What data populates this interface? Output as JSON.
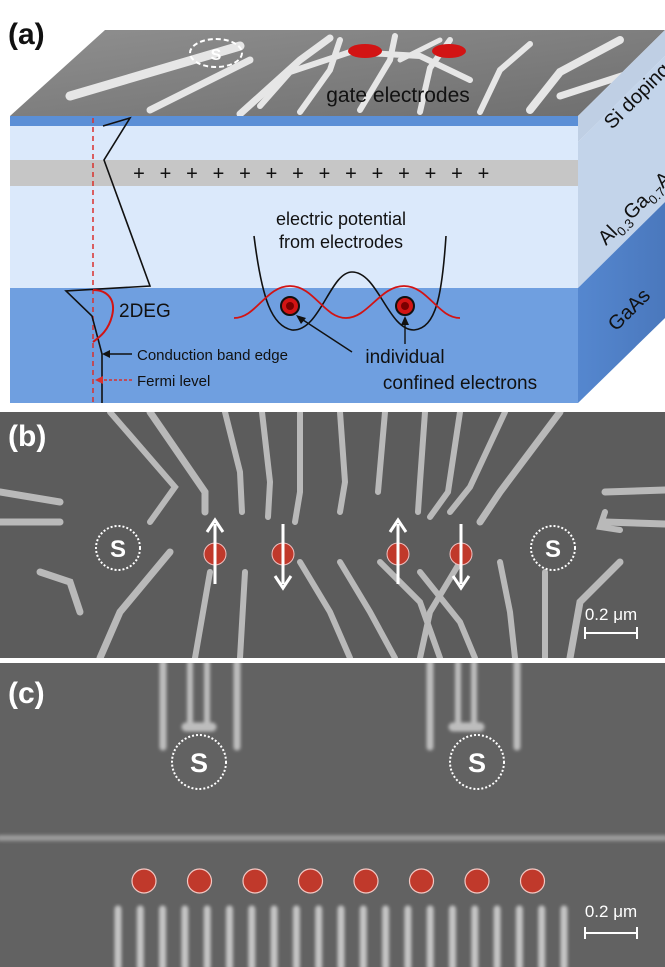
{
  "panel_a": {
    "label": "(a)",
    "gate_label": "gate electrodes",
    "layer_si": "Si doping",
    "layer_algaas": {
      "al": "Al",
      "s1": "0.3",
      "ga": "Ga",
      "s2": "0.7",
      "as": "As"
    },
    "layer_gaas": "GaAs",
    "plus_sign": "+",
    "potential_label_1": "electric potential",
    "potential_label_2": "from electrodes",
    "twodeg_label": "2DEG",
    "conduction_label": "Conduction band edge",
    "fermi_label": "Fermi level",
    "electrons_label_1": "individual",
    "electrons_label_2": "confined electrons",
    "sensor_symbol": "S",
    "colors": {
      "electron": "#d21414",
      "potential": "#111111",
      "fermi": "#d9302c",
      "gaas": "#6f9fe0",
      "algaas": "#dbe9fb",
      "spacer": "#c6c6c6"
    }
  },
  "panel_b": {
    "label": "(b)",
    "sensor_symbol": "S",
    "scale_label": "0.2 μm",
    "spins": [
      "up",
      "down",
      "up",
      "down"
    ]
  },
  "panel_c": {
    "label": "(c)",
    "sensor_symbol": "S",
    "scale_label": "0.2 μm",
    "dot_count": 8
  }
}
